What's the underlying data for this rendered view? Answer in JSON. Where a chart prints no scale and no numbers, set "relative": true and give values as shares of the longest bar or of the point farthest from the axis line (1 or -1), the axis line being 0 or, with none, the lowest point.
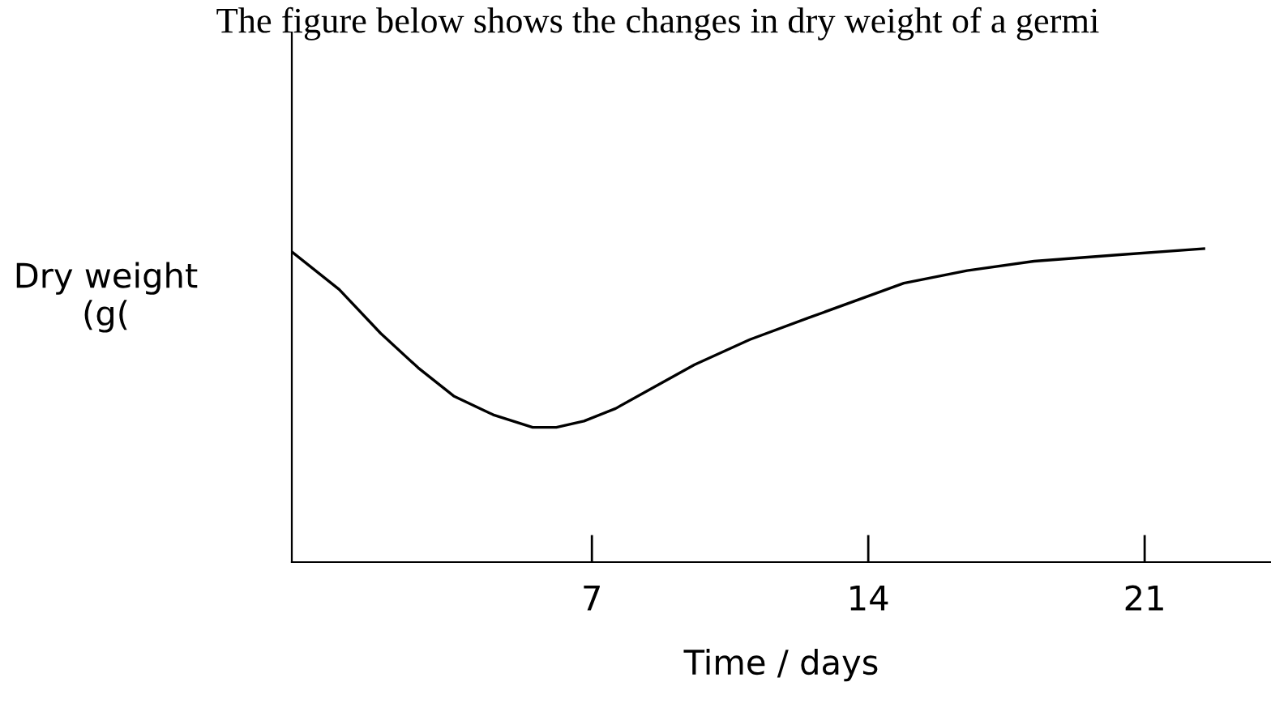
{
  "chart_data": {
    "type": "line",
    "title": "The figure below shows the changes in dry weight of a germi",
    "xlabel": "Time / days",
    "ylabel": "Dry weight\n(g(",
    "relative": true,
    "series": [
      {
        "color": "#000000",
        "x": [
          -0.6,
          0.6,
          1.65,
          2.6,
          3.5,
          4.5,
          5.5,
          6.1,
          6.8,
          7.6,
          8.6,
          9.6,
          11,
          12.5,
          14.9,
          16.5,
          18.2,
          20.3,
          22.5
        ],
        "values": [
          0.99,
          0.87,
          0.73,
          0.62,
          0.53,
          0.47,
          0.43,
          0.43,
          0.45,
          0.49,
          0.56,
          0.63,
          0.71,
          0.78,
          0.89,
          0.93,
          0.96,
          0.98,
          1.0
        ]
      }
    ],
    "xlim": [
      -0.6,
      24.2
    ],
    "xticks": [
      7,
      14,
      21
    ],
    "grid": false,
    "legend": false,
    "marker": "none",
    "line_style": "solid"
  }
}
